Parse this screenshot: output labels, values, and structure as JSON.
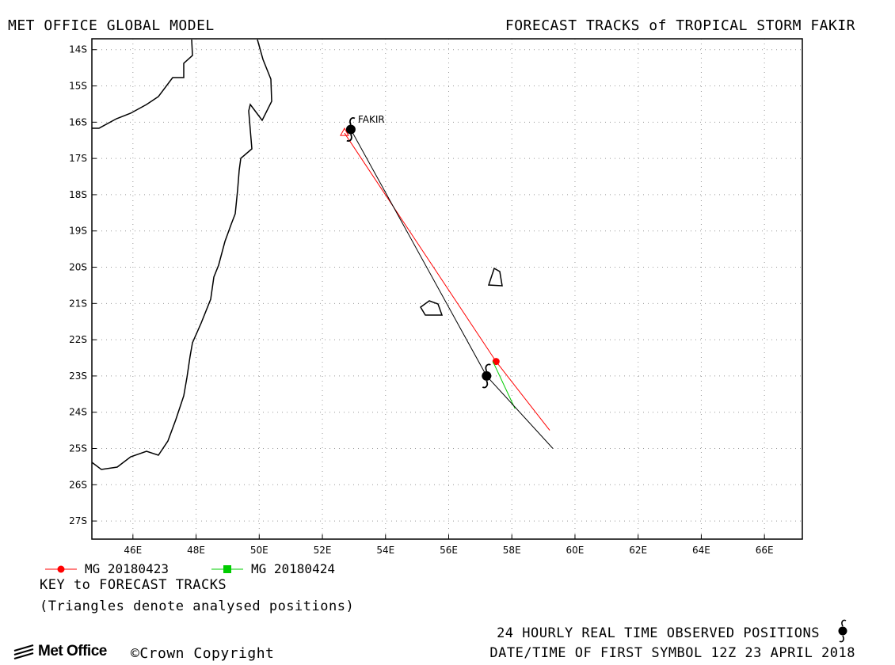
{
  "header": {
    "left_title": "MET OFFICE GLOBAL MODEL",
    "right_title": "FORECAST TRACKS of TROPICAL STORM FAKIR"
  },
  "storm_label": "FAKIR",
  "map": {
    "lon_range": [
      44.7,
      67.2
    ],
    "lat_range": [
      -27.5,
      -13.7
    ],
    "x_ticks": [
      "46E",
      "48E",
      "50E",
      "52E",
      "54E",
      "56E",
      "58E",
      "60E",
      "62E",
      "64E",
      "66E"
    ],
    "x_tick_values": [
      46,
      48,
      50,
      52,
      54,
      56,
      58,
      60,
      62,
      64,
      66
    ],
    "y_ticks": [
      "14S",
      "15S",
      "16S",
      "17S",
      "18S",
      "19S",
      "20S",
      "21S",
      "22S",
      "23S",
      "24S",
      "25S",
      "26S",
      "27S"
    ],
    "y_tick_values": [
      -14,
      -15,
      -16,
      -17,
      -18,
      -19,
      -20,
      -21,
      -22,
      -23,
      -24,
      -25,
      -26,
      -27
    ],
    "grid": true,
    "land_color": "#000000",
    "observed_track": [
      [
        52.9,
        -16.2
      ],
      [
        57.2,
        -23.0
      ],
      [
        59.3,
        -25.0
      ]
    ],
    "forecast_tracks": [
      {
        "name": "MG 20180423",
        "color": "#ff0000",
        "marker": "circle",
        "points": [
          [
            52.7,
            -16.3
          ],
          [
            57.5,
            -22.6
          ],
          [
            59.2,
            -24.5
          ]
        ]
      },
      {
        "name": "MG 20180424",
        "color": "#00cc00",
        "marker": "square",
        "points": [
          [
            57.4,
            -22.6
          ],
          [
            58.1,
            -23.9
          ]
        ]
      }
    ]
  },
  "legend": {
    "key_title": "KEY to FORECAST TRACKS",
    "key_note": "(Triangles denote analysed positions)"
  },
  "footer": {
    "logo_text": "Met Office",
    "copyright": "©Crown Copyright",
    "observed_label": "24 HOURLY REAL TIME OBSERVED POSITIONS",
    "date_label": "DATE/TIME OF FIRST SYMBOL 12Z 23 APRIL 2018"
  }
}
